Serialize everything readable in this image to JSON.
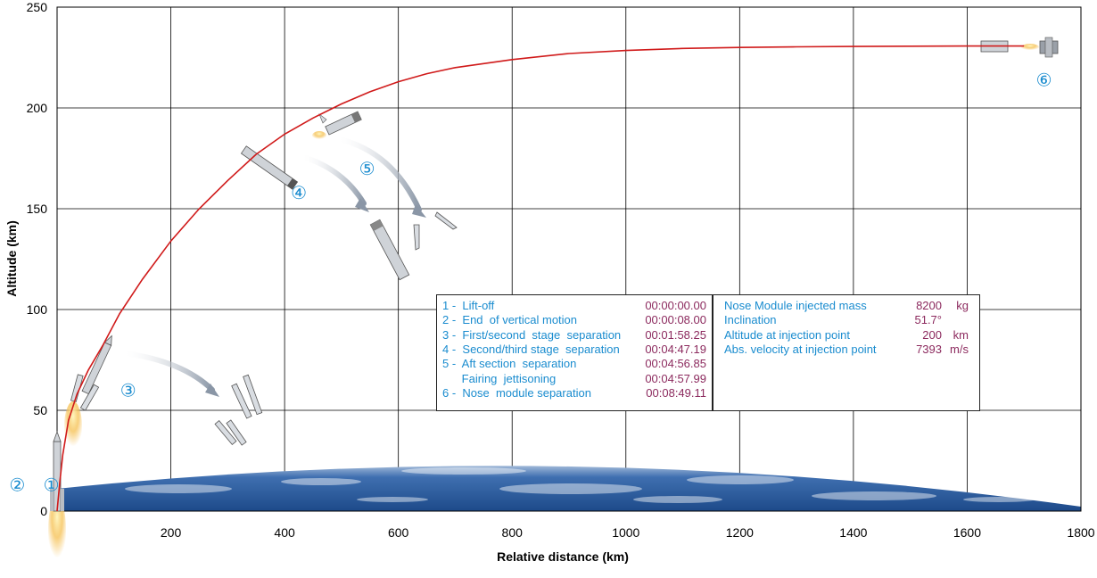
{
  "chart_data": {
    "type": "line",
    "xlabel": "Relative distance (km)",
    "ylabel": "Altitude (km)",
    "xlim": [
      0,
      1800
    ],
    "ylim": [
      0,
      250
    ],
    "x_ticks": [
      "0",
      "200",
      "400",
      "600",
      "800",
      "1000",
      "1200",
      "1400",
      "1600",
      "1800"
    ],
    "y_ticks": [
      "0",
      "50",
      "100",
      "150",
      "200",
      "250"
    ],
    "grid": true,
    "series": [
      {
        "color": "#d01a1a",
        "x": [
          0,
          5,
          10,
          20,
          35,
          55,
          80,
          110,
          150,
          200,
          250,
          300,
          350,
          400,
          450,
          500,
          550,
          600,
          650,
          700,
          800,
          900,
          1000,
          1100,
          1200,
          1300,
          1400,
          1500,
          1600,
          1700
        ],
        "y": [
          0,
          15,
          28,
          45,
          58,
          70,
          82,
          98,
          115,
          134,
          150,
          164,
          177,
          187,
          195,
          202,
          208,
          213,
          217,
          220,
          224,
          227,
          228.5,
          229.5,
          230,
          230.3,
          230.5,
          230.6,
          230.7,
          230.7
        ]
      }
    ],
    "event_markers": [
      {
        "label": "①",
        "x": -10,
        "y": 13
      },
      {
        "label": "②",
        "x": -70,
        "y": 13
      },
      {
        "label": "③",
        "x": 125,
        "y": 60
      },
      {
        "label": "④",
        "x": 425,
        "y": 158
      },
      {
        "label": "⑤",
        "x": 545,
        "y": 170
      },
      {
        "label": "⑥",
        "x": 1735,
        "y": 214
      }
    ]
  },
  "events_table": {
    "rows": [
      {
        "label": "1 -  Lift-off",
        "time": "00:00:00.00"
      },
      {
        "label": "2 -  End  of vertical motion",
        "time": "00:00:08.00"
      },
      {
        "label": "3 -  First/second  stage  separation",
        "time": "00:01:58.25"
      },
      {
        "label": "4 -  Second/third stage  separation",
        "time": "00:04:47.19"
      },
      {
        "label": "5 -  Aft section  separation",
        "time": "00:04:56.85"
      },
      {
        "label": "      Fairing  jettisoning",
        "time": "00:04:57.99"
      },
      {
        "label": "6 -  Nose  module separation",
        "time": "00:08:49.11"
      }
    ]
  },
  "injection_table": {
    "rows": [
      {
        "label": "Nose Module injected mass",
        "value": "8200",
        "unit": "kg"
      },
      {
        "label": "Inclination",
        "value": "51.7°",
        "unit": ""
      },
      {
        "label": "Altitude at injection point",
        "value": "200",
        "unit": "km"
      },
      {
        "label": "Abs. velocity at injection point",
        "value": "7393",
        "unit": "m/s"
      }
    ]
  },
  "colors": {
    "trajectory": "#d01a1a",
    "event_label": "#1a8ccf",
    "event_value": "#8c2a5e",
    "earth": "#2c5f9e"
  }
}
